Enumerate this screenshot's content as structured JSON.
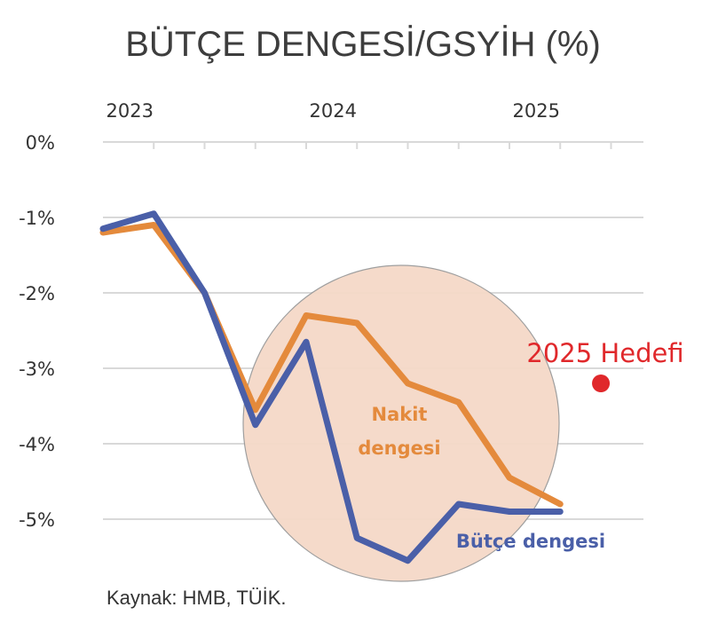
{
  "chart_data": {
    "type": "line",
    "title": "BÜTÇE DENGESİ/GSYİH (%)",
    "x_tick_labels": [
      "2023",
      "2024",
      "2025"
    ],
    "y_tick_labels": [
      "0%",
      "-1%",
      "-2%",
      "-3%",
      "-4%",
      "-5%"
    ],
    "y_ticks": [
      0,
      -1,
      -2,
      -3,
      -4,
      -5
    ],
    "ylim": [
      -5.9,
      0
    ],
    "grid": true,
    "series": [
      {
        "name": "Bütçe dengesi",
        "color": "#4a5fa8",
        "x": [
          2022.5,
          2022.75,
          2023.0,
          2023.25,
          2023.5,
          2023.75,
          2024.0,
          2024.25,
          2024.5,
          2024.75
        ],
        "values": [
          -1.15,
          -0.95,
          -2.0,
          -3.75,
          -2.65,
          -5.25,
          -5.55,
          -4.8,
          -4.9,
          -4.9
        ]
      },
      {
        "name": "Nakit dengesi",
        "color": "#e48a3c",
        "x": [
          2022.5,
          2022.75,
          2023.0,
          2023.25,
          2023.5,
          2023.75,
          2024.0,
          2024.25,
          2024.5,
          2024.75
        ],
        "values": [
          -1.2,
          -1.1,
          -2.0,
          -3.55,
          -2.3,
          -2.4,
          -3.2,
          -3.45,
          -4.45,
          -4.8
        ]
      }
    ],
    "target": {
      "label": "2025 Hedefi",
      "x": 2024.95,
      "value": -3.2,
      "color": "#e0282b"
    },
    "highlight_circle_color": "#f5d9c8",
    "source": "Kaynak: HMB, TÜİK."
  }
}
